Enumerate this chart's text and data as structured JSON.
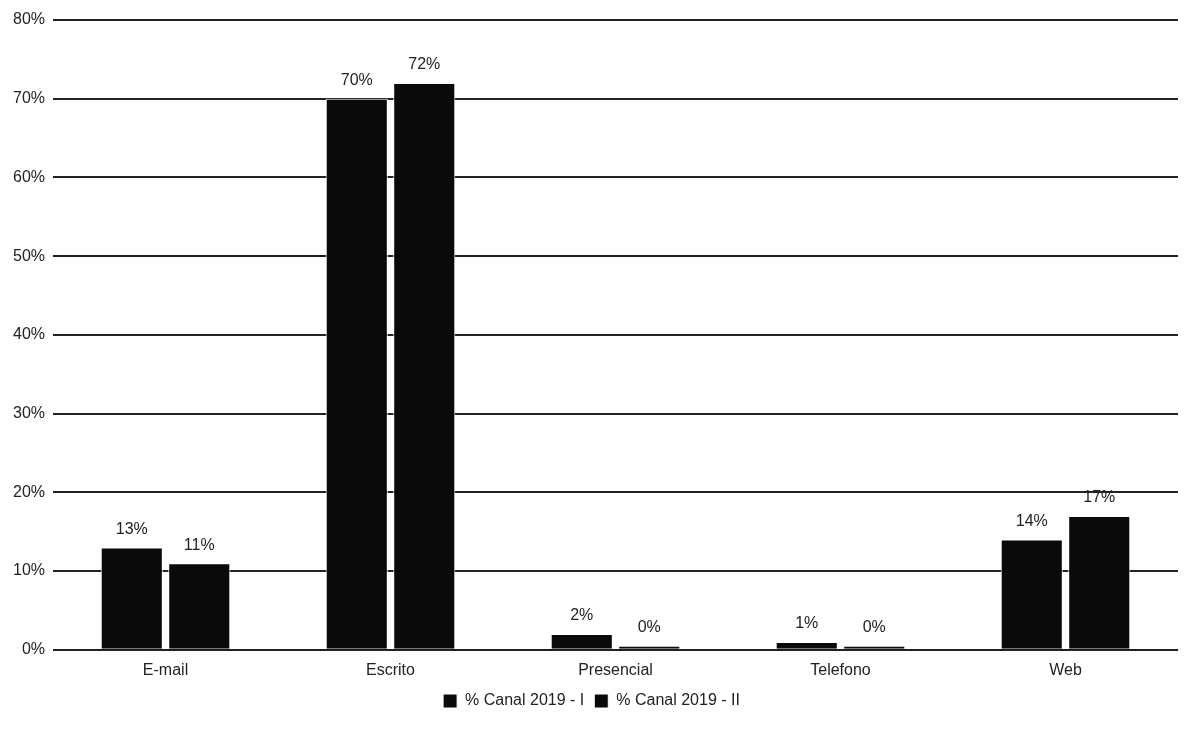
{
  "chart_data": {
    "type": "bar",
    "categories": [
      "E-mail",
      "Escrito",
      "Presencial",
      "Telefono",
      "Web"
    ],
    "series": [
      {
        "name": "% Canal 2019 - I",
        "color": "#0a0a0a",
        "values": [
          13,
          70,
          2,
          1,
          14
        ],
        "value_labels": [
          "13%",
          "70%",
          "2%",
          "1%",
          "14%"
        ]
      },
      {
        "name": "% Canal 2019 - II",
        "color": "#0a0a0a",
        "values": [
          11,
          72,
          0,
          0,
          17
        ],
        "value_labels": [
          "11%",
          "72%",
          "0%",
          "0%",
          "17%"
        ]
      }
    ],
    "ylim": [
      0,
      80
    ],
    "yticks": [
      {
        "value": 0,
        "label": "0%"
      },
      {
        "value": 10,
        "label": "10%"
      },
      {
        "value": 20,
        "label": "20%"
      },
      {
        "value": 30,
        "label": "30%"
      },
      {
        "value": 40,
        "label": "40%"
      },
      {
        "value": 50,
        "label": "50%"
      },
      {
        "value": 60,
        "label": "60%"
      },
      {
        "value": 70,
        "label": "70%"
      },
      {
        "value": 80,
        "label": "80%"
      }
    ],
    "grid": "y",
    "legend": "bottom"
  }
}
